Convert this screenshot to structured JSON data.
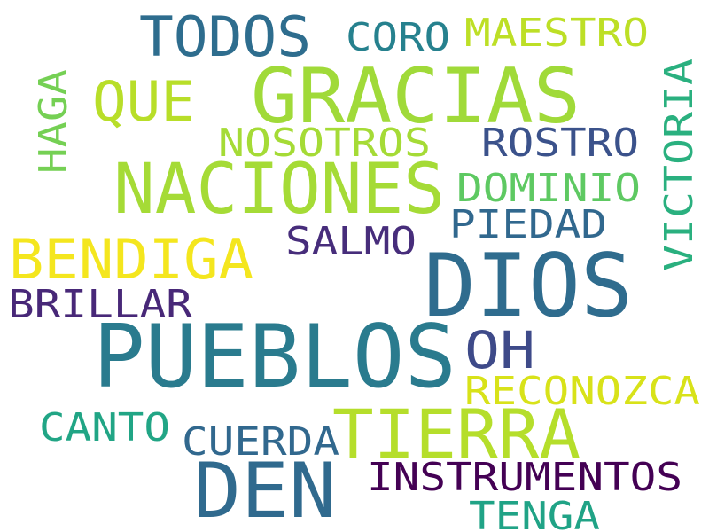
{
  "words": [
    {
      "id": "pueblos",
      "text": "PUEBLOS",
      "color": "#2a7b8e",
      "vertical": false
    },
    {
      "id": "dios",
      "text": "DIOS",
      "color": "#2f6c8e",
      "vertical": false
    },
    {
      "id": "gracias",
      "text": "GRACIAS",
      "color": "#a0da39",
      "vertical": false
    },
    {
      "id": "naciones",
      "text": "NACIONES",
      "color": "#a5db36",
      "vertical": false
    },
    {
      "id": "den",
      "text": "DEN",
      "color": "#306a8e",
      "vertical": false
    },
    {
      "id": "tierra",
      "text": "TIERRA",
      "color": "#b5de2b",
      "vertical": false
    },
    {
      "id": "bendiga",
      "text": "BENDIGA",
      "color": "#f4e61e",
      "vertical": false
    },
    {
      "id": "todos",
      "text": "TODOS",
      "color": "#2e6d8e",
      "vertical": false
    },
    {
      "id": "que",
      "text": "QUE",
      "color": "#b8de29",
      "vertical": false
    },
    {
      "id": "victoria",
      "text": "VICTORIA",
      "color": "#2ab07f",
      "vertical": true
    },
    {
      "id": "instrumentos",
      "text": "INSTRUMENTOS",
      "color": "#440154",
      "vertical": false
    },
    {
      "id": "reconozca",
      "text": "RECONOZCA",
      "color": "#d8e219",
      "vertical": false
    },
    {
      "id": "oh",
      "text": "OH",
      "color": "#3e4a89",
      "vertical": false
    },
    {
      "id": "haga",
      "text": "HAGA",
      "color": "#75d054",
      "vertical": true
    },
    {
      "id": "maestro",
      "text": "MAESTRO",
      "color": "#bddf26",
      "vertical": false
    },
    {
      "id": "coro",
      "text": "CORO",
      "color": "#26818e",
      "vertical": false
    },
    {
      "id": "nosotros",
      "text": "NOSOTROS",
      "color": "#a5db36",
      "vertical": false
    },
    {
      "id": "rostro",
      "text": "ROSTRO",
      "color": "#3b528b",
      "vertical": false
    },
    {
      "id": "dominio",
      "text": "DOMINIO",
      "color": "#5ec962",
      "vertical": false
    },
    {
      "id": "piedad",
      "text": "PIEDAD",
      "color": "#31688e",
      "vertical": false
    },
    {
      "id": "salmo",
      "text": "SALMO",
      "color": "#472d7b",
      "vertical": false
    },
    {
      "id": "brillar",
      "text": "BRILLAR",
      "color": "#482878",
      "vertical": false
    },
    {
      "id": "canto",
      "text": "CANTO",
      "color": "#21a585",
      "vertical": false
    },
    {
      "id": "cuerda",
      "text": "CUERDA",
      "color": "#31688e",
      "vertical": false
    },
    {
      "id": "tenga",
      "text": "TENGA",
      "color": "#20a386",
      "vertical": false
    }
  ]
}
